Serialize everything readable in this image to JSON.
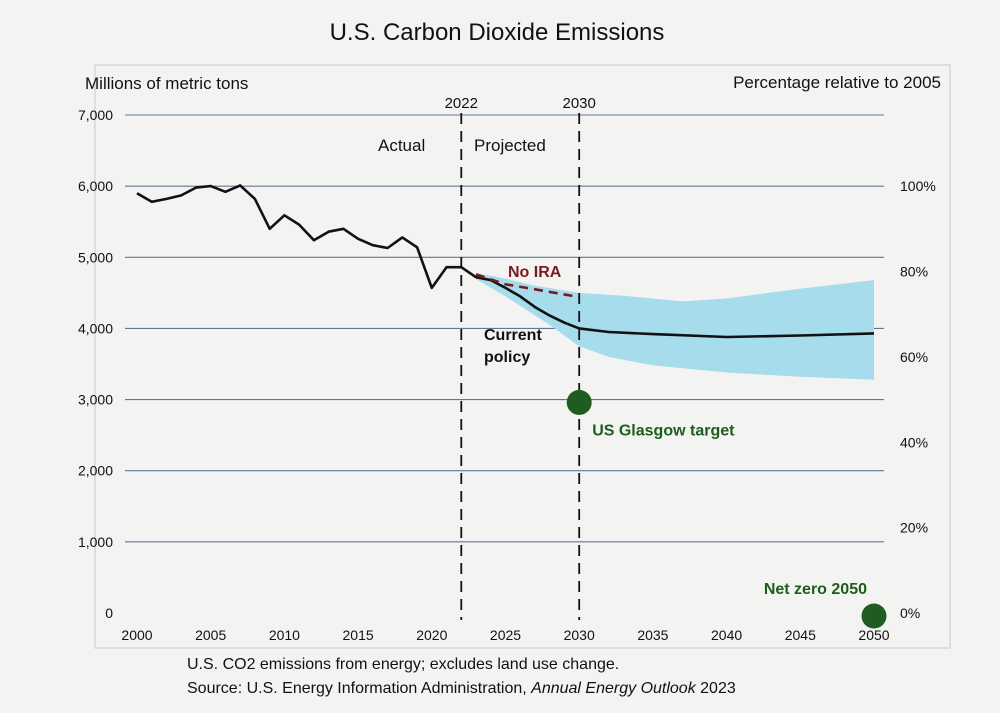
{
  "chart_data": {
    "type": "line",
    "title": "U.S. Carbon Dioxide Emissions",
    "ylabel_left": "Millions of metric tons",
    "ylabel_right": "Percentage relative to 2005",
    "xlim": [
      2000,
      2050
    ],
    "ylim": [
      0,
      7000
    ],
    "x_ticks": [
      "2000",
      "2005",
      "2010",
      "2015",
      "2020",
      "2025",
      "2030",
      "2035",
      "2040",
      "2045",
      "2050"
    ],
    "y_ticks": [
      "0",
      "1,000",
      "2,000",
      "3,000",
      "4,000",
      "5,000",
      "6,000",
      "7,000"
    ],
    "y_right_ticks": [
      "0%",
      "20%",
      "40%",
      "60%",
      "80%",
      "100%"
    ],
    "grid": true,
    "markers": [
      {
        "label": "2022",
        "x": 2022
      },
      {
        "label": "2030",
        "x": 2030
      }
    ],
    "regions": {
      "actual": "Actual",
      "projected": "Projected"
    },
    "series": [
      {
        "name": "Current policy",
        "style": "solid",
        "color": "#111111",
        "points": [
          [
            2000,
            5900
          ],
          [
            2001,
            5780
          ],
          [
            2002,
            5820
          ],
          [
            2003,
            5870
          ],
          [
            2004,
            5980
          ],
          [
            2005,
            6000
          ],
          [
            2006,
            5920
          ],
          [
            2007,
            6010
          ],
          [
            2008,
            5820
          ],
          [
            2009,
            5400
          ],
          [
            2010,
            5590
          ],
          [
            2011,
            5460
          ],
          [
            2012,
            5240
          ],
          [
            2013,
            5360
          ],
          [
            2014,
            5400
          ],
          [
            2015,
            5260
          ],
          [
            2016,
            5170
          ],
          [
            2017,
            5130
          ],
          [
            2018,
            5280
          ],
          [
            2019,
            5140
          ],
          [
            2020,
            4570
          ],
          [
            2021,
            4860
          ],
          [
            2022,
            4860
          ],
          [
            2023,
            4720
          ],
          [
            2024,
            4680
          ],
          [
            2025,
            4570
          ],
          [
            2026,
            4450
          ],
          [
            2027,
            4300
          ],
          [
            2028,
            4180
          ],
          [
            2029,
            4080
          ],
          [
            2030,
            4000
          ],
          [
            2032,
            3950
          ],
          [
            2035,
            3920
          ],
          [
            2040,
            3880
          ],
          [
            2045,
            3900
          ],
          [
            2050,
            3930
          ]
        ]
      },
      {
        "name": "No IRA",
        "style": "dashed",
        "color": "#7a1a1f",
        "points": [
          [
            2023,
            4760
          ],
          [
            2025,
            4620
          ],
          [
            2027,
            4550
          ],
          [
            2030,
            4440
          ]
        ]
      }
    ],
    "band": {
      "color": "#a6dcec",
      "upper": [
        [
          2023,
          4780
        ],
        [
          2025,
          4700
        ],
        [
          2027,
          4600
        ],
        [
          2030,
          4500
        ],
        [
          2033,
          4460
        ],
        [
          2037,
          4380
        ],
        [
          2040,
          4420
        ],
        [
          2045,
          4560
        ],
        [
          2050,
          4680
        ]
      ],
      "lower": [
        [
          2050,
          3280
        ],
        [
          2045,
          3320
        ],
        [
          2040,
          3380
        ],
        [
          2035,
          3480
        ],
        [
          2032,
          3600
        ],
        [
          2030,
          3750
        ],
        [
          2028,
          4050
        ],
        [
          2025,
          4450
        ],
        [
          2023,
          4690
        ]
      ]
    },
    "targets": [
      {
        "label": "US Glasgow target",
        "x": 2030,
        "y": 2960,
        "color": "#1f5c1f"
      },
      {
        "label": "Net zero 2050",
        "x": 2050,
        "y": 0,
        "color": "#1f5c1f"
      }
    ],
    "notes": {
      "line1": "U.S. CO2 emissions from energy; excludes land use change.",
      "source_prefix": "Source: U.S. Energy Information Administration, ",
      "source_title": "Annual Energy Outlook",
      "source_suffix": " 2023"
    }
  }
}
